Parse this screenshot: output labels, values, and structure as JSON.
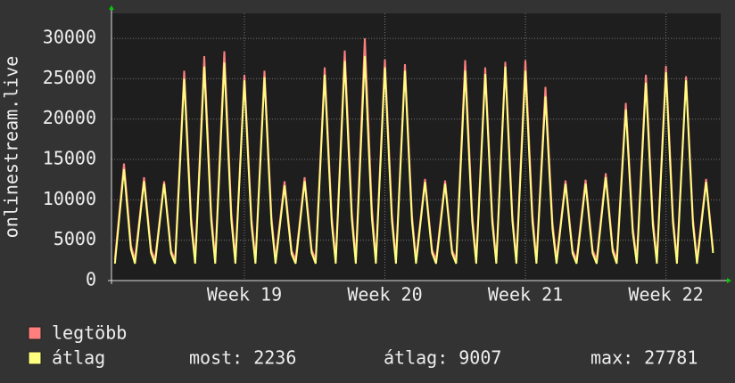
{
  "chart_data": {
    "type": "line",
    "y_label": "onlinestream.live",
    "xlim": [
      -6.62,
      23.73
    ],
    "xticks": [
      {
        "value": 0,
        "label": "Week 19"
      },
      {
        "value": 7,
        "label": "Week 20"
      },
      {
        "value": 14,
        "label": "Week 21"
      },
      {
        "value": 21,
        "label": "Week 22"
      }
    ],
    "ylim": [
      0,
      33100
    ],
    "yticks": [
      0,
      5000,
      10000,
      15000,
      20000,
      25000,
      30000
    ],
    "grid": true,
    "x": [
      -6.45,
      -6,
      -5.8,
      -5.65,
      -5.45,
      -5,
      -4.8,
      -4.65,
      -4.45,
      -4,
      -3.8,
      -3.65,
      -3.45,
      -3,
      -2.8,
      -2.65,
      -2.45,
      -2,
      -1.8,
      -1.65,
      -1.45,
      -1,
      -0.8,
      -0.65,
      -0.45,
      0,
      0.2,
      0.35,
      0.55,
      1,
      1.2,
      1.35,
      1.55,
      2,
      2.2,
      2.35,
      2.55,
      3,
      3.2,
      3.35,
      3.55,
      4,
      4.2,
      4.35,
      4.55,
      5,
      5.2,
      5.35,
      5.55,
      6,
      6.2,
      6.35,
      6.55,
      7,
      7.2,
      7.35,
      7.55,
      8,
      8.2,
      8.35,
      8.55,
      9,
      9.2,
      9.35,
      9.55,
      10,
      10.2,
      10.35,
      10.55,
      11,
      11.2,
      11.35,
      11.55,
      12,
      12.2,
      12.35,
      12.55,
      13,
      13.2,
      13.35,
      13.55,
      14,
      14.2,
      14.35,
      14.55,
      15,
      15.2,
      15.35,
      15.55,
      16,
      16.2,
      16.35,
      16.55,
      17,
      17.2,
      17.35,
      17.55,
      18,
      18.2,
      18.35,
      18.55,
      19,
      19.2,
      19.35,
      19.55,
      20,
      20.2,
      20.35,
      20.55,
      21,
      21.2,
      21.35,
      21.55,
      22,
      22.2,
      22.35,
      22.55,
      23,
      23.2,
      23.35
    ],
    "series": [
      {
        "name": "legtöbb",
        "color": "#ff7f7f",
        "values": [
          2600,
          14500,
          8700,
          4350,
          2600,
          12800,
          7680,
          3840,
          2600,
          12300,
          7380,
          3690,
          2600,
          26000,
          15600,
          7800,
          2600,
          27800,
          16680,
          8340,
          2600,
          28400,
          17040,
          8520,
          2600,
          25500,
          15300,
          7650,
          2600,
          26000,
          15600,
          7800,
          2600,
          12300,
          7380,
          3690,
          2600,
          12800,
          7680,
          3840,
          2600,
          26400,
          15840,
          7920,
          2600,
          28500,
          17100,
          8550,
          2600,
          30000,
          18000,
          9000,
          2600,
          27400,
          16440,
          8220,
          2600,
          26800,
          16080,
          8040,
          2600,
          12600,
          7560,
          3780,
          2600,
          12400,
          7440,
          3720,
          2600,
          27300,
          16380,
          8190,
          2600,
          26400,
          15840,
          7920,
          2600,
          27100,
          16260,
          8130,
          2600,
          27300,
          16380,
          8190,
          2600,
          24000,
          14400,
          7200,
          2600,
          12400,
          7440,
          3720,
          2600,
          12500,
          7500,
          3750,
          2600,
          13300,
          7980,
          3990,
          2600,
          22000,
          13200,
          6600,
          2600,
          25500,
          15300,
          7650,
          2600,
          26600,
          15960,
          7980,
          2600,
          25300,
          15180,
          7590,
          2600,
          12600,
          7560,
          3780
        ]
      },
      {
        "name": "átlag",
        "color": "#ffff80",
        "values": [
          2100,
          13800,
          8000,
          3860,
          2100,
          12300,
          7130,
          3440,
          2100,
          12000,
          6960,
          3360,
          2100,
          25000,
          14500,
          7000,
          2100,
          26500,
          15370,
          7420,
          2100,
          27000,
          15660,
          7560,
          2100,
          24800,
          14380,
          6940,
          2100,
          25200,
          14620,
          7060,
          2100,
          11800,
          6840,
          3300,
          2100,
          12300,
          7130,
          3440,
          2100,
          25500,
          14790,
          7140,
          2100,
          27200,
          15780,
          7620,
          2100,
          27800,
          16120,
          7780,
          2100,
          26400,
          15310,
          7390,
          2100,
          26000,
          15080,
          7280,
          2100,
          12200,
          7080,
          3420,
          2100,
          12000,
          6960,
          3360,
          2100,
          26000,
          15080,
          7280,
          2100,
          25600,
          14850,
          7170,
          2100,
          26500,
          15370,
          7420,
          2100,
          26000,
          15080,
          7280,
          2100,
          22800,
          13220,
          6380,
          2100,
          12000,
          6960,
          3360,
          2100,
          12000,
          6960,
          3360,
          2100,
          12800,
          7420,
          3580,
          2100,
          21200,
          12300,
          5940,
          2100,
          24500,
          14210,
          6860,
          2100,
          25800,
          14960,
          7220,
          2100,
          24800,
          14380,
          6940,
          2100,
          12200,
          7080,
          3420
        ]
      }
    ],
    "stats": [
      {
        "label": "most:",
        "value": 2236
      },
      {
        "label": "átlag:",
        "value": 9007
      },
      {
        "label": "max:",
        "value": 27781
      }
    ]
  }
}
